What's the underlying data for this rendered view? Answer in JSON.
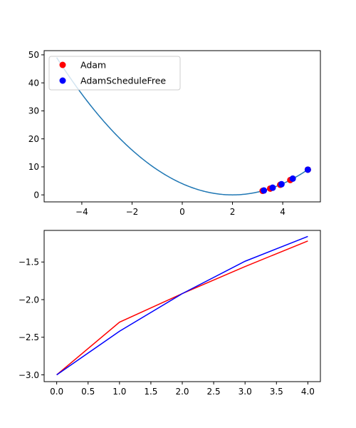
{
  "colors": {
    "curve": "#1f77b4",
    "adam": "#ff0000",
    "schedule_free": "#0000ff",
    "axes": "#000000",
    "legend_border": "#cccccc"
  },
  "chart_data": [
    {
      "type": "scatter",
      "title": "",
      "xlabel": "",
      "ylabel": "",
      "xlim": [
        -5.5,
        5.5
      ],
      "ylim": [
        -2.5,
        51.5
      ],
      "xticks": [
        -4,
        -2,
        0,
        2,
        4
      ],
      "xtick_labels": [
        "−4",
        "−2",
        "0",
        "2",
        "4"
      ],
      "yticks": [
        0,
        10,
        20,
        30,
        40,
        50
      ],
      "ytick_labels": [
        "0",
        "10",
        "20",
        "30",
        "40",
        "50"
      ],
      "grid": false,
      "legend": {
        "placement": "upper-left"
      },
      "curve": {
        "x_range": [
          -5,
          5
        ],
        "function": "(x - 2)^2"
      },
      "series": [
        {
          "name": "Adam",
          "points": [
            {
              "x": 5.0,
              "y": 9.0
            },
            {
              "x": 4.3,
              "y": 5.3
            },
            {
              "x": 3.9,
              "y": 3.6
            },
            {
              "x": 3.5,
              "y": 2.25
            },
            {
              "x": 3.2,
              "y": 1.44
            }
          ]
        },
        {
          "name": "AdamScheduleFree",
          "points": [
            {
              "x": 5.0,
              "y": 9.0
            },
            {
              "x": 4.4,
              "y": 5.8
            },
            {
              "x": 3.95,
              "y": 3.8
            },
            {
              "x": 3.6,
              "y": 2.56
            },
            {
              "x": 3.25,
              "y": 1.56
            }
          ]
        }
      ]
    },
    {
      "type": "line",
      "title": "",
      "xlabel": "",
      "ylabel": "",
      "xlim": [
        -0.2,
        4.2
      ],
      "ylim": [
        -3.09,
        -1.08
      ],
      "xticks": [
        0,
        0.5,
        1,
        1.5,
        2,
        2.5,
        3,
        3.5,
        4
      ],
      "xtick_labels": [
        "0.0",
        "0.5",
        "1.0",
        "1.5",
        "2.0",
        "2.5",
        "3.0",
        "3.5",
        "4.0"
      ],
      "yticks": [
        -3.0,
        -2.5,
        -2.0,
        -1.5
      ],
      "ytick_labels": [
        "−3.0",
        "−2.5",
        "−2.0",
        "−1.5"
      ],
      "grid": false,
      "x": [
        0,
        1,
        2,
        3,
        4
      ],
      "series": [
        {
          "values": [
            -3.0,
            -2.3,
            -1.92,
            -1.56,
            -1.22
          ]
        },
        {
          "values": [
            -3.0,
            -2.42,
            -1.92,
            -1.49,
            -1.16
          ]
        }
      ]
    }
  ]
}
